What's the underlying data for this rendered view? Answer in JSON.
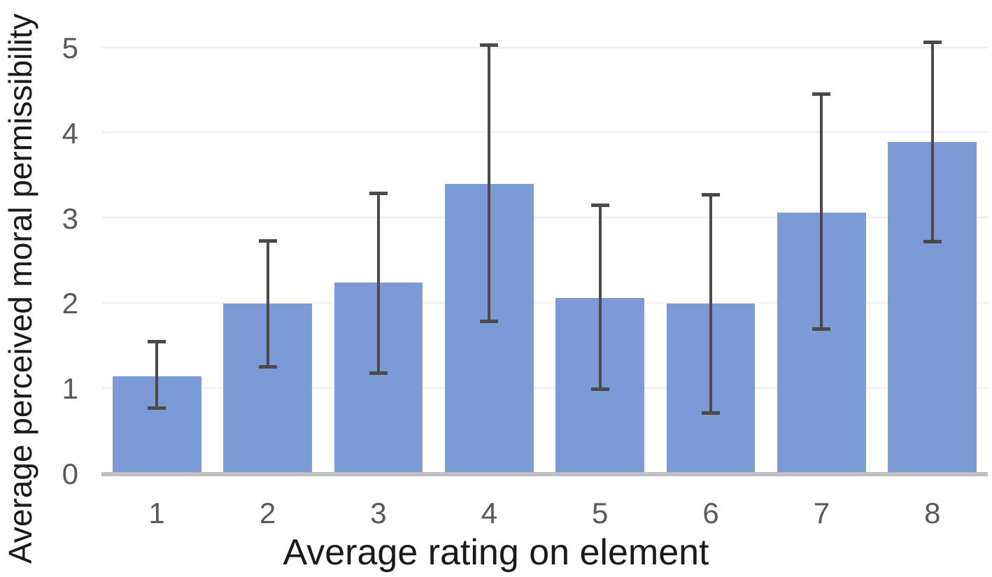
{
  "chart_data": {
    "type": "bar",
    "title": "",
    "xlabel": "Average rating on element",
    "ylabel": "Average perceived moral permissibility",
    "categories": [
      "1",
      "2",
      "3",
      "4",
      "5",
      "6",
      "7",
      "8"
    ],
    "values": [
      1.15,
      2.0,
      2.25,
      3.41,
      2.07,
      2.0,
      3.07,
      3.9
    ],
    "error_min": [
      0.78,
      1.26,
      1.19,
      1.79,
      1.0,
      0.72,
      1.7,
      2.73
    ],
    "error_max": [
      1.56,
      2.74,
      3.3,
      5.04,
      3.16,
      3.28,
      4.46,
      5.07
    ],
    "y_ticks": [
      0,
      1,
      2,
      3,
      4,
      5
    ],
    "ylim": [
      0,
      5
    ],
    "grid": true,
    "legend_position": "none",
    "colors": {
      "bar": "#7c9ad5",
      "error_bar": "#4a4a4a",
      "gridline": "#f1f1f1",
      "baseline": "#bfbfbf",
      "tick_label": "#595959",
      "axis_title": "#1a1a1a",
      "background": "#ffffff"
    }
  }
}
